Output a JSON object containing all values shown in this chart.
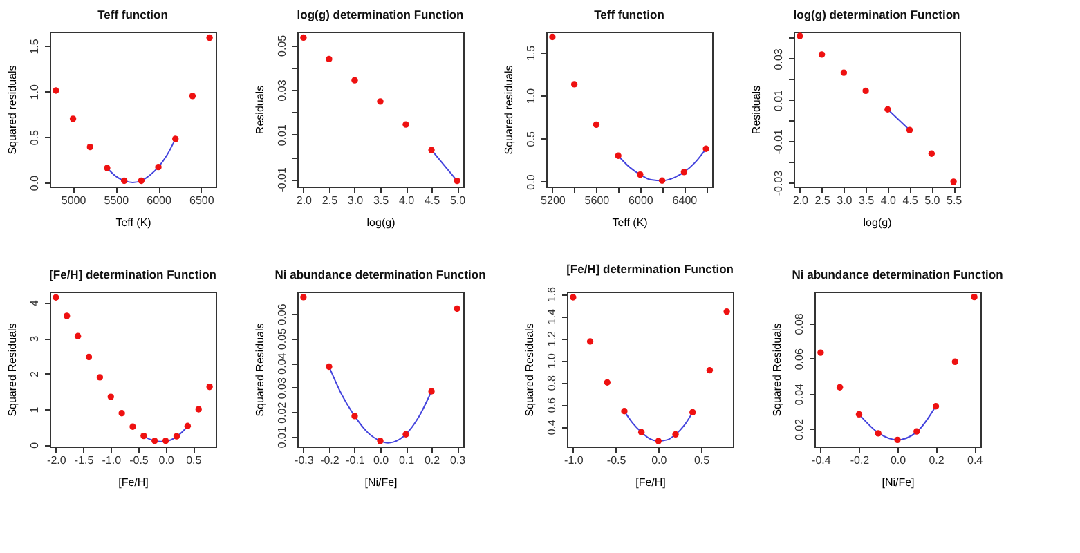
{
  "chart_data": [
    {
      "type": "scatter",
      "title": "Teff function",
      "xlabel": "Teff (K)",
      "ylabel": "Squared residuals",
      "xlim": [
        4728,
        6672
      ],
      "ylim": [
        -0.045,
        1.655
      ],
      "xticks": [
        5000,
        5500,
        6000,
        6500
      ],
      "yticks": [
        {
          "value": 0,
          "label": "0.0"
        },
        0.5,
        {
          "value": 1,
          "label": "1.0"
        },
        1.5
      ],
      "series": [
        {
          "type": "scatter",
          "marker": "circle",
          "color": "#ee1111",
          "x": [
            4800,
            5000,
            5200,
            5400,
            5600,
            5800,
            6000,
            6200,
            6400,
            6600
          ],
          "values": [
            1.01,
            0.7,
            0.39,
            0.16,
            0.02,
            0.02,
            0.17,
            0.48,
            0.95,
            1.59
          ]
        },
        {
          "type": "line",
          "marker": "none",
          "color": "#4444dd",
          "x": [
            5400,
            5500,
            5600,
            5700,
            5800,
            5900,
            6000,
            6100,
            6200
          ],
          "values": [
            0.16,
            0.07,
            0.02,
            0.0,
            0.02,
            0.08,
            0.17,
            0.3,
            0.48
          ]
        }
      ]
    },
    {
      "type": "scatter",
      "title": "log(g) determination Function",
      "xlabel": "log(g)",
      "ylabel": "Residuals",
      "xlim": [
        1.88,
        5.12
      ],
      "ylim": [
        -0.0133,
        0.056
      ],
      "xticks": [
        {
          "value": 2,
          "label": "2.0"
        },
        2.5,
        {
          "value": 3,
          "label": "3.0"
        },
        3.5,
        {
          "value": 4,
          "label": "4.0"
        },
        4.5,
        {
          "value": 5,
          "label": "5.0"
        }
      ],
      "yticks": [
        -0.01,
        {
          "value": 0,
          "label": null
        },
        0.01,
        {
          "value": 0.02,
          "label": null
        },
        0.03,
        {
          "value": 0.04,
          "label": null
        },
        0.05
      ],
      "series": [
        {
          "type": "scatter",
          "marker": "circle",
          "color": "#ee1111",
          "x": [
            2,
            2.5,
            3,
            3.5,
            4,
            4.5,
            5
          ],
          "values": [
            0.0534,
            0.0438,
            0.0343,
            0.0248,
            0.0145,
            0.0031,
            -0.0107
          ]
        },
        {
          "type": "line",
          "marker": "none",
          "color": "#4444dd",
          "x": [
            4.5,
            5
          ],
          "values": [
            0.0031,
            -0.0107
          ]
        }
      ]
    },
    {
      "type": "scatter",
      "title": "Teff function",
      "xlabel": "Teff (K)",
      "ylabel": "Squared residuals",
      "xlim": [
        5144,
        6656
      ],
      "ylim": [
        -0.06,
        1.74
      ],
      "xticks": [
        5200,
        {
          "value": 5400,
          "label": null
        },
        5600,
        {
          "value": 5800,
          "label": null
        },
        6000,
        {
          "value": 6200,
          "label": null
        },
        6400,
        {
          "value": 6600,
          "label": null
        }
      ],
      "yticks": [
        {
          "value": 0,
          "label": "0.0"
        },
        0.5,
        {
          "value": 1,
          "label": "1.0"
        },
        1.5
      ],
      "series": [
        {
          "type": "scatter",
          "marker": "circle",
          "color": "#ee1111",
          "x": [
            5200,
            5400,
            5600,
            5800,
            6000,
            6200,
            6400,
            6600
          ],
          "values": [
            1.68,
            1.13,
            0.66,
            0.3,
            0.08,
            0.01,
            0.11,
            0.38
          ]
        },
        {
          "type": "line",
          "marker": "none",
          "color": "#4444dd",
          "x": [
            5800,
            5900,
            6000,
            6100,
            6200,
            6300,
            6400,
            6500,
            6600
          ],
          "values": [
            0.3,
            0.17,
            0.08,
            0.02,
            0.01,
            0.04,
            0.11,
            0.22,
            0.38
          ]
        }
      ]
    },
    {
      "type": "scatter",
      "title": "log(g) determination Function",
      "xlabel": "log(g)",
      "ylabel": "Residuals",
      "xlim": [
        1.86,
        5.64
      ],
      "ylim": [
        -0.032,
        0.043
      ],
      "xticks": [
        {
          "value": 2,
          "label": "2.0"
        },
        2.5,
        {
          "value": 3,
          "label": "3.0"
        },
        3.5,
        {
          "value": 4,
          "label": "4.0"
        },
        4.5,
        {
          "value": 5,
          "label": "5.0"
        },
        5.5
      ],
      "yticks": [
        -0.03,
        {
          "value": -0.02,
          "label": null
        },
        -0.01,
        {
          "value": 0,
          "label": null
        },
        0.01,
        {
          "value": 0.02,
          "label": null
        },
        0.03,
        {
          "value": 0.04,
          "label": null
        }
      ],
      "series": [
        {
          "type": "scatter",
          "marker": "circle",
          "color": "#ee1111",
          "x": [
            2,
            2.5,
            3,
            3.5,
            4,
            4.5,
            5,
            5.5
          ],
          "values": [
            0.041,
            0.032,
            0.0232,
            0.0144,
            0.0054,
            -0.0046,
            -0.016,
            -0.0296
          ]
        },
        {
          "type": "line",
          "marker": "none",
          "color": "#4444dd",
          "x": [
            4,
            4.5
          ],
          "values": [
            0.0054,
            -0.0046
          ]
        }
      ]
    },
    {
      "type": "scatter",
      "title": "[Fe/H] determination Function",
      "xlabel": "[Fe/H]",
      "ylabel": "Squared Residuals",
      "xlim": [
        -2.112,
        0.912
      ],
      "ylim": [
        -0.05,
        4.31
      ],
      "xticks": [
        {
          "value": -2,
          "label": "-2.0"
        },
        -1.5,
        {
          "value": -1,
          "label": "-1.0"
        },
        -0.5,
        {
          "value": 0,
          "label": "0.0"
        },
        0.5
      ],
      "yticks": [
        0,
        1,
        2,
        3,
        4
      ],
      "series": [
        {
          "type": "scatter",
          "marker": "circle",
          "color": "#ee1111",
          "x": [
            -2,
            -1.8,
            -1.6,
            -1.4,
            -1.2,
            -1,
            -0.8,
            -0.6,
            -0.4,
            -0.2,
            0,
            0.2,
            0.4,
            0.6,
            0.8
          ],
          "values": [
            4.15,
            3.63,
            3.06,
            2.47,
            1.9,
            1.35,
            0.89,
            0.51,
            0.25,
            0.11,
            0.11,
            0.24,
            0.53,
            1.0,
            1.63
          ]
        },
        {
          "type": "line",
          "marker": "none",
          "color": "#4444dd",
          "x": [
            -0.4,
            -0.3,
            -0.2,
            -0.1,
            0,
            0.1,
            0.2,
            0.3,
            0.4
          ],
          "values": [
            0.25,
            0.16,
            0.11,
            0.09,
            0.1,
            0.14,
            0.23,
            0.36,
            0.52
          ]
        }
      ]
    },
    {
      "type": "scatter",
      "title": "Ni abundance determination Function",
      "xlabel": "[Ni/Fe]",
      "ylabel": "Squared Residuals",
      "xlim": [
        -0.324,
        0.324
      ],
      "ylim": [
        0.006,
        0.069
      ],
      "xticks": [
        -0.3,
        -0.2,
        -0.1,
        {
          "value": 0,
          "label": "0.0"
        },
        0.1,
        0.2,
        0.3
      ],
      "yticks": [
        0.01,
        0.02,
        0.03,
        0.04,
        0.05,
        0.06
      ],
      "series": [
        {
          "type": "scatter",
          "marker": "circle",
          "color": "#ee1111",
          "x": [
            -0.3,
            -0.2,
            -0.1,
            0,
            0.1,
            0.2,
            0.3
          ],
          "values": [
            0.0668,
            0.0385,
            0.0184,
            0.0083,
            0.011,
            0.0285,
            0.0621
          ]
        },
        {
          "type": "line",
          "marker": "none",
          "color": "#4444dd",
          "x": [
            -0.2,
            -0.15,
            -0.1,
            -0.05,
            0,
            0.03,
            0.05,
            0.1,
            0.15,
            0.2
          ],
          "values": [
            0.0385,
            0.027,
            0.0184,
            0.0118,
            0.0083,
            0.0075,
            0.0078,
            0.011,
            0.018,
            0.0285
          ]
        }
      ]
    },
    {
      "type": "scatter",
      "title": "[Fe/H] determination Function",
      "xlabel": "[Fe/H]",
      "ylabel": "Squared Residuals",
      "xlim": [
        -1.072,
        0.872
      ],
      "ylim": [
        0.22,
        1.62
      ],
      "xticks": [
        {
          "value": -1,
          "label": "-1.0"
        },
        -0.5,
        {
          "value": 0,
          "label": "0.0"
        },
        0.5
      ],
      "yticks": [
        0.4,
        0.6,
        0.8,
        {
          "value": 1,
          "label": "1.0"
        },
        1.2,
        1.4,
        1.6
      ],
      "series": [
        {
          "type": "scatter",
          "marker": "circle",
          "color": "#ee1111",
          "x": [
            -1,
            -0.8,
            -0.6,
            -0.4,
            -0.2,
            0,
            0.2,
            0.4,
            0.6,
            0.8
          ],
          "values": [
            1.57,
            1.17,
            0.8,
            0.54,
            0.35,
            0.27,
            0.33,
            0.53,
            0.91,
            1.44
          ]
        },
        {
          "type": "line",
          "marker": "none",
          "color": "#4444dd",
          "x": [
            -0.4,
            -0.3,
            -0.2,
            -0.1,
            0,
            0.1,
            0.2,
            0.3,
            0.4
          ],
          "values": [
            0.54,
            0.43,
            0.35,
            0.29,
            0.27,
            0.28,
            0.33,
            0.41,
            0.53
          ]
        }
      ]
    },
    {
      "type": "scatter",
      "title": "Ni abundance determination Function",
      "xlabel": "[Ni/Fe]",
      "ylabel": "Squared Residuals",
      "xlim": [
        -0.432,
        0.432
      ],
      "ylim": [
        0.01,
        0.098
      ],
      "xticks": [
        -0.4,
        -0.2,
        {
          "value": 0,
          "label": "0.0"
        },
        0.2,
        0.4
      ],
      "yticks": [
        0.02,
        0.04,
        0.06,
        0.08
      ],
      "series": [
        {
          "type": "scatter",
          "marker": "circle",
          "color": "#ee1111",
          "x": [
            -0.4,
            -0.3,
            -0.2,
            -0.1,
            0,
            0.1,
            0.2,
            0.3,
            0.4
          ],
          "values": [
            0.0634,
            0.0437,
            0.0283,
            0.0175,
            0.0138,
            0.0186,
            0.0329,
            0.0582,
            0.095
          ]
        },
        {
          "type": "line",
          "marker": "none",
          "color": "#4444dd",
          "x": [
            -0.2,
            -0.1,
            0,
            0.1,
            0.2
          ],
          "values": [
            0.0283,
            0.0178,
            0.0138,
            0.0183,
            0.033
          ]
        }
      ]
    }
  ]
}
